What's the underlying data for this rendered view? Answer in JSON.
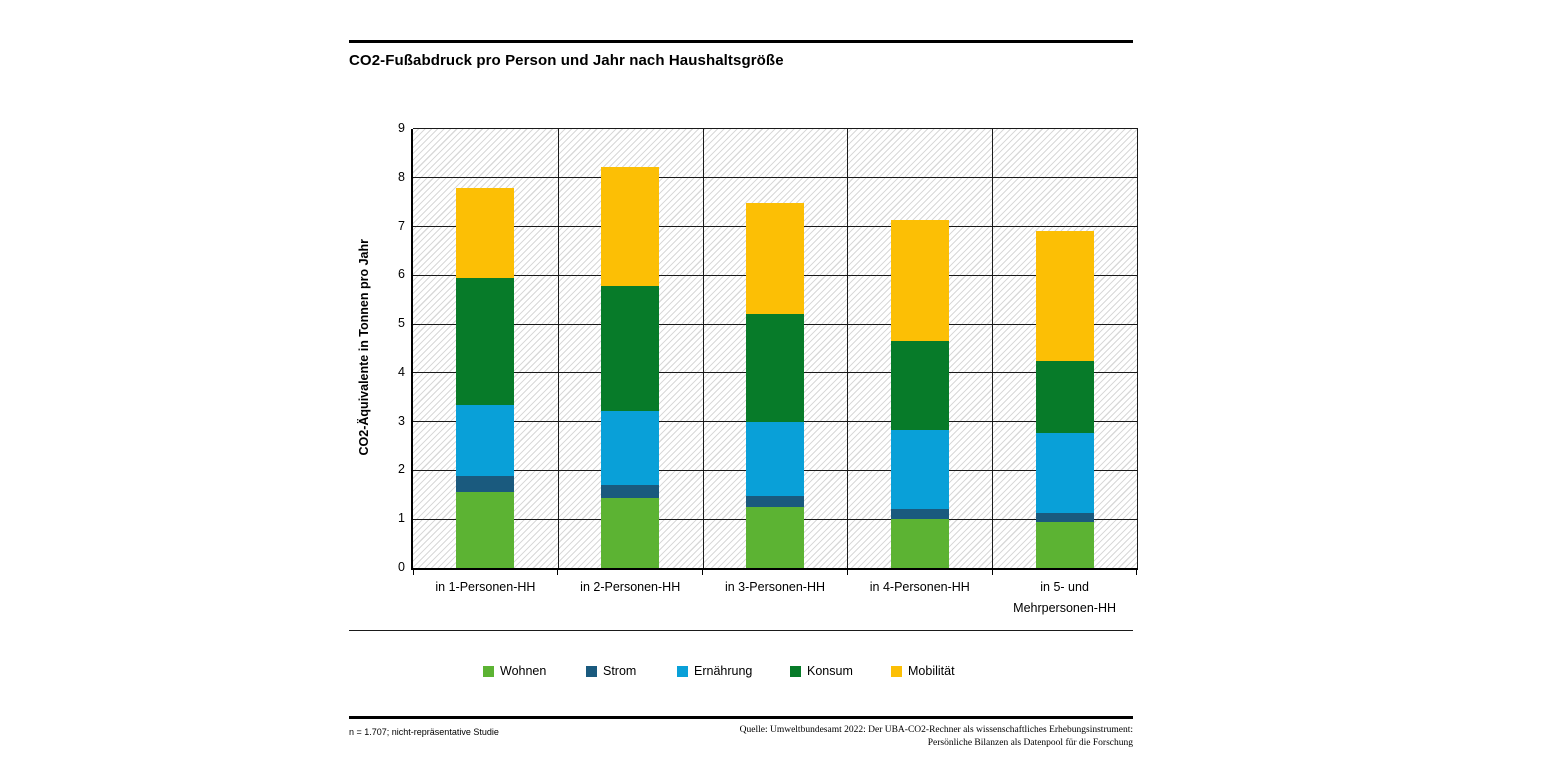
{
  "chart": {
    "title": "CO2-Fußabdruck pro Person und Jahr nach Haushaltsgröße",
    "ylabel": "CO2-Äquivalente in Tonnen pro Jahr"
  },
  "chart_data": {
    "type": "bar",
    "stacked": true,
    "title": "CO2-Fußabdruck pro Person und Jahr nach Haushaltsgröße",
    "xlabel": "",
    "ylabel": "CO2-Äquivalente in Tonnen pro Jahr",
    "ylim": [
      0,
      9
    ],
    "yticks": [
      0,
      1,
      2,
      3,
      4,
      5,
      6,
      7,
      8,
      9
    ],
    "grid": true,
    "plot_background": "diagonal-hatch",
    "legend_position": "bottom",
    "categories": [
      "in 1-Personen-HH",
      "in 2-Personen-HH",
      "in 3-Personen-HH",
      "in 4-Personen-HH",
      "in 5- und\nMehrpersonen-HH"
    ],
    "series": [
      {
        "name": "Wohnen",
        "color": "#5CB333",
        "values": [
          1.55,
          1.43,
          1.25,
          1.01,
          0.95
        ]
      },
      {
        "name": "Strom",
        "color": "#1A5A7E",
        "values": [
          0.33,
          0.27,
          0.22,
          0.2,
          0.18
        ]
      },
      {
        "name": "Ernährung",
        "color": "#09A0D8",
        "values": [
          1.46,
          1.51,
          1.53,
          1.62,
          1.63
        ]
      },
      {
        "name": "Konsum",
        "color": "#077B29",
        "values": [
          2.61,
          2.57,
          2.21,
          1.82,
          1.49
        ]
      },
      {
        "name": "Mobilität",
        "color": "#FCBF05",
        "values": [
          1.84,
          2.44,
          2.28,
          2.48,
          2.66
        ]
      }
    ],
    "totals": [
      7.79,
      8.22,
      7.49,
      7.13,
      6.91
    ]
  },
  "footer": {
    "note": "n = 1.707; nicht-repräsentative Studie",
    "source_line1": "Quelle: Umweltbundesamt 2022: Der UBA-CO2-Rechner als wissenschaftliches Erhebungsinstrument:",
    "source_line2": "Persönliche Bilanzen als Datenpool für die Forschung"
  }
}
